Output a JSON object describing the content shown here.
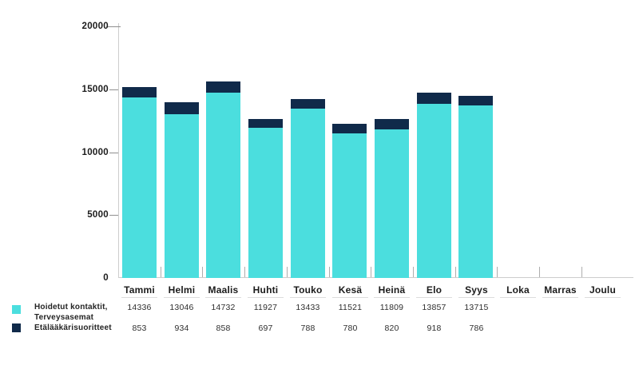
{
  "chart_data": {
    "type": "bar",
    "stacked": true,
    "categories": [
      "Tammi",
      "Helmi",
      "Maalis",
      "Huhti",
      "Touko",
      "Kesä",
      "Heinä",
      "Elo",
      "Syys",
      "Loka",
      "Marras",
      "Joulu"
    ],
    "series": [
      {
        "name": "Hoidetut kontaktit, Terveysasemat",
        "color": "#4BDEDE",
        "values": [
          14336,
          13046,
          14732,
          11927,
          13433,
          11521,
          11809,
          13857,
          13715,
          null,
          null,
          null
        ]
      },
      {
        "name": "Etälääkärisuoritteet",
        "color": "#102A4A",
        "values": [
          853,
          934,
          858,
          697,
          788,
          780,
          820,
          918,
          786,
          null,
          null,
          null
        ]
      }
    ],
    "ylim": [
      0,
      20000
    ],
    "yticks": [
      0,
      5000,
      10000,
      15000,
      20000
    ],
    "xlabel": "",
    "ylabel": "",
    "grid": false,
    "legend_position": "bottom-left",
    "value_rows_shown_under_axis": true
  },
  "legend": {
    "items": [
      {
        "label_lines": [
          "Hoidetut kontaktit,",
          "Terveysasemat"
        ],
        "color": "#4BDEDE"
      },
      {
        "label_lines": [
          "Etälääkärisuoritteet"
        ],
        "color": "#102A4A"
      }
    ]
  },
  "colors": {
    "axis": "#cdcdcd",
    "y_tick": "#8f8f8f",
    "x_tick": "#adadad",
    "column_rule": "#dcdcdc",
    "text_dark": "#1b1b1b",
    "text_value": "#2e2e2e"
  }
}
